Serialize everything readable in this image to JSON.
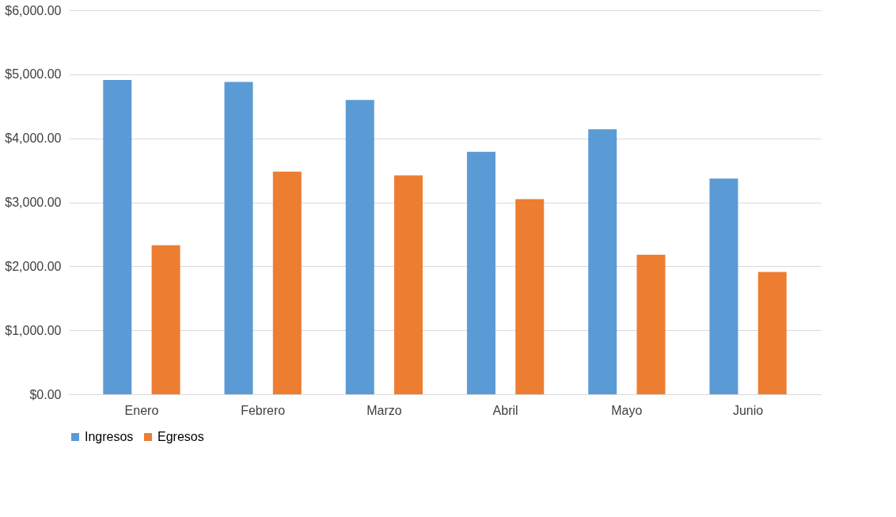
{
  "chart_data": {
    "type": "bar",
    "categories": [
      "Enero",
      "Febrero",
      "Marzo",
      "Abril",
      "Mayo",
      "Junio"
    ],
    "series": [
      {
        "name": "Ingresos",
        "color": "#5b9bd5",
        "values": [
          4910,
          4880,
          4600,
          3790,
          4140,
          3370
        ]
      },
      {
        "name": "Egresos",
        "color": "#ed7d31",
        "values": [
          2330,
          3480,
          3420,
          3050,
          2180,
          1910
        ]
      }
    ],
    "ylim": [
      0,
      6000
    ],
    "yticks": [
      {
        "value": 0,
        "label": "$0.00"
      },
      {
        "value": 1000,
        "label": "$1,000.00"
      },
      {
        "value": 2000,
        "label": "$2,000.00"
      },
      {
        "value": 3000,
        "label": "$3,000.00"
      },
      {
        "value": 4000,
        "label": "$4,000.00"
      },
      {
        "value": 5000,
        "label": "$5,000.00"
      },
      {
        "value": 6000,
        "label": "$6,000.00"
      }
    ],
    "grid": "y",
    "legend": "bottom"
  }
}
